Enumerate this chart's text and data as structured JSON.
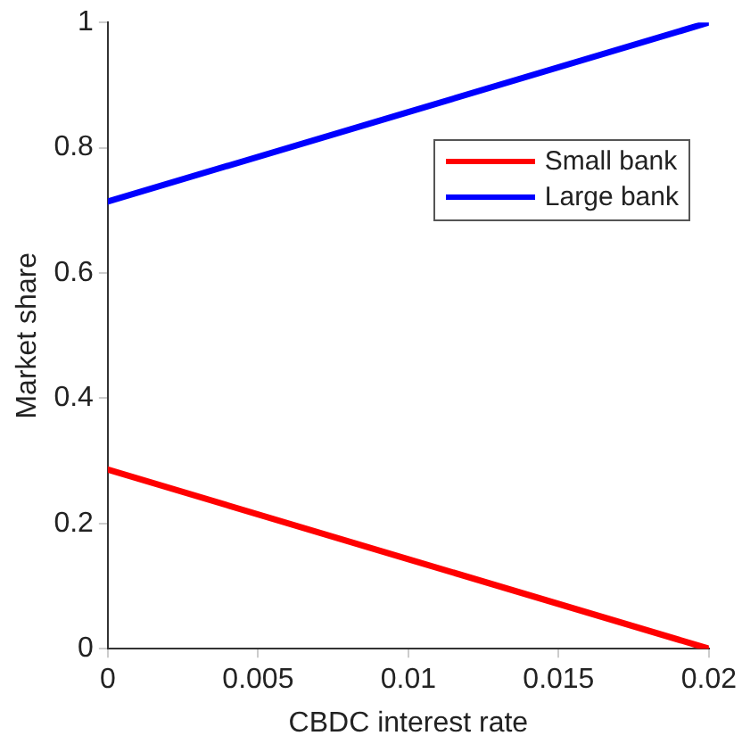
{
  "chart_data": {
    "type": "line",
    "xlabel": "CBDC interest rate",
    "ylabel": "Market share",
    "x": [
      0,
      0.01,
      0.02
    ],
    "series": [
      {
        "name": "Small bank",
        "color": "#ff0000",
        "values": [
          0.286,
          0.143,
          0
        ]
      },
      {
        "name": "Large bank",
        "color": "#0000ff",
        "values": [
          0.714,
          0.857,
          1
        ]
      }
    ],
    "xlim": [
      0,
      0.02
    ],
    "xticks": [
      0,
      0.005,
      0.01,
      0.015,
      0.02
    ],
    "ylim": [
      0,
      1
    ],
    "yticks": [
      0,
      0.2,
      0.4,
      0.6,
      0.8,
      1
    ],
    "grid": false,
    "legend": "top right",
    "marker": "none",
    "line_style": "solid"
  }
}
